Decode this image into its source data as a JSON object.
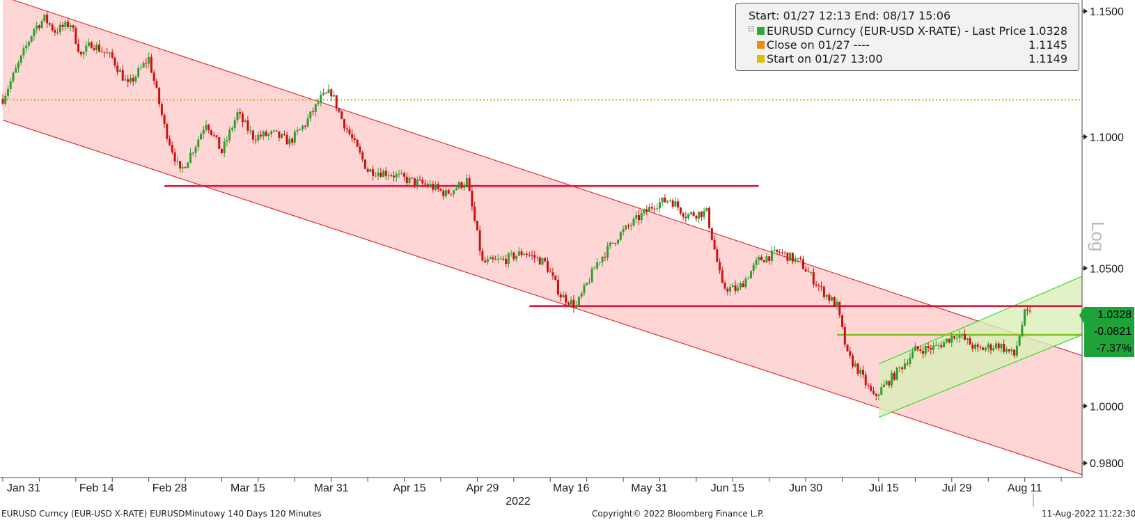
{
  "chart_data": {
    "type": "candlestick",
    "scale": "log",
    "ylim": [
      0.975,
      1.154
    ],
    "y_ticks": [
      "1.1500",
      "1.1000",
      "1.0500",
      "1.0000",
      "0.9800"
    ],
    "y_tick_values": [
      1.15,
      1.1,
      1.05,
      1.0,
      0.98
    ],
    "x_ticks": [
      "Jan 31",
      "Feb 14",
      "Feb 28",
      "Mar 15",
      "Mar 31",
      "Apr 15",
      "Apr 29",
      "May 16",
      "May 31",
      "Jun 15",
      "Jun 30",
      "Jul 15",
      "Jul 29",
      "Aug 11"
    ],
    "x_tick_days": [
      4,
      18,
      32,
      47,
      63,
      78,
      92,
      109,
      124,
      139,
      154,
      169,
      183,
      196
    ],
    "year_label": "2022",
    "xlim_days": [
      0,
      207
    ],
    "price_series": {
      "name": "EURUSD Curncy (EUR-USD X-RATE) - Last Price",
      "color_up": "#2e9e2e",
      "color_down": "#cc1010",
      "x_days": [
        0,
        3,
        6,
        8,
        10,
        13,
        15,
        17,
        19,
        21,
        24,
        28,
        31,
        34,
        37,
        39,
        42,
        45,
        48,
        52,
        55,
        58,
        61,
        63,
        65,
        67,
        70,
        74,
        78,
        82,
        85,
        89,
        92,
        96,
        100,
        104,
        107,
        110,
        114,
        118,
        122,
        125,
        128,
        131,
        135,
        138,
        141,
        145,
        149,
        153,
        157,
        160,
        162,
        164,
        167,
        171,
        175,
        179,
        183,
        187,
        191,
        194,
        196,
        197
      ],
      "closes": [
        1.1149,
        1.1285,
        1.143,
        1.147,
        1.142,
        1.145,
        1.132,
        1.137,
        1.134,
        1.131,
        1.12,
        1.131,
        1.104,
        1.086,
        1.097,
        1.106,
        1.094,
        1.109,
        1.1,
        1.101,
        1.098,
        1.105,
        1.115,
        1.1175,
        1.107,
        1.099,
        1.087,
        1.086,
        1.083,
        1.081,
        1.078,
        1.083,
        1.052,
        1.053,
        1.056,
        1.052,
        1.04,
        1.036,
        1.052,
        1.062,
        1.069,
        1.074,
        1.076,
        1.07,
        1.071,
        1.043,
        1.042,
        1.053,
        1.056,
        1.052,
        1.042,
        1.036,
        1.018,
        1.013,
        1.003,
        1.011,
        1.02,
        1.021,
        1.026,
        1.02,
        1.022,
        1.018,
        1.033,
        1.0328
      ]
    },
    "horizontal_lines": [
      {
        "label": "Close on 01/27",
        "value": 1.1145,
        "style": "dotted",
        "color": "#d9a400"
      },
      {
        "value": 1.081,
        "color": "#e8103a",
        "x_days": [
          31,
          145
        ]
      },
      {
        "value": 1.036,
        "color": "#e8103a",
        "x_days": [
          101,
          207
        ]
      },
      {
        "value": 1.0255,
        "color": "#7fc31c",
        "x_days": [
          160,
          207
        ]
      }
    ],
    "channels": [
      {
        "color": "#e03030",
        "fill": "#ffd6d6",
        "upper": [
          [
            0,
            1.156
          ],
          [
            207,
            1.018
          ]
        ],
        "lower": [
          [
            0,
            1.1065
          ],
          [
            207,
            0.976
          ]
        ]
      },
      {
        "color": "#32d932",
        "fill": "#d9efb8",
        "upper": [
          [
            168,
            1.015
          ],
          [
            207,
            1.047
          ]
        ],
        "lower": [
          [
            168,
            0.996
          ],
          [
            207,
            1.0255
          ]
        ]
      }
    ]
  },
  "legend": {
    "header": "Start: 01/27 12:13 End: 08/17 15:06",
    "rows": [
      {
        "label": "EURUSD Curncy (EUR-USD X-RATE) - Last Price",
        "value": "1.0328",
        "color": "#2ea82e",
        "tree": "⊟"
      },
      {
        "label": "Close on 01/27 ----",
        "value": "1.1145",
        "color": "#f08c00",
        "tree": ""
      },
      {
        "label": "Start on 01/27 13:00",
        "value": "1.1149",
        "color": "#d9bf00",
        "tree": ""
      }
    ]
  },
  "price_tags": [
    "1.0328",
    "-0.0821",
    "-7.37%"
  ],
  "axis_title": "Log",
  "footer": {
    "left": "EURUSD Curncy (EUR-USD X-RATE) EURUSDMinutowy 140 Days 120 Minutes",
    "center": "Copyright© 2022 Bloomberg Finance L.P.",
    "right": "11-Aug-2022 11:22:30"
  }
}
